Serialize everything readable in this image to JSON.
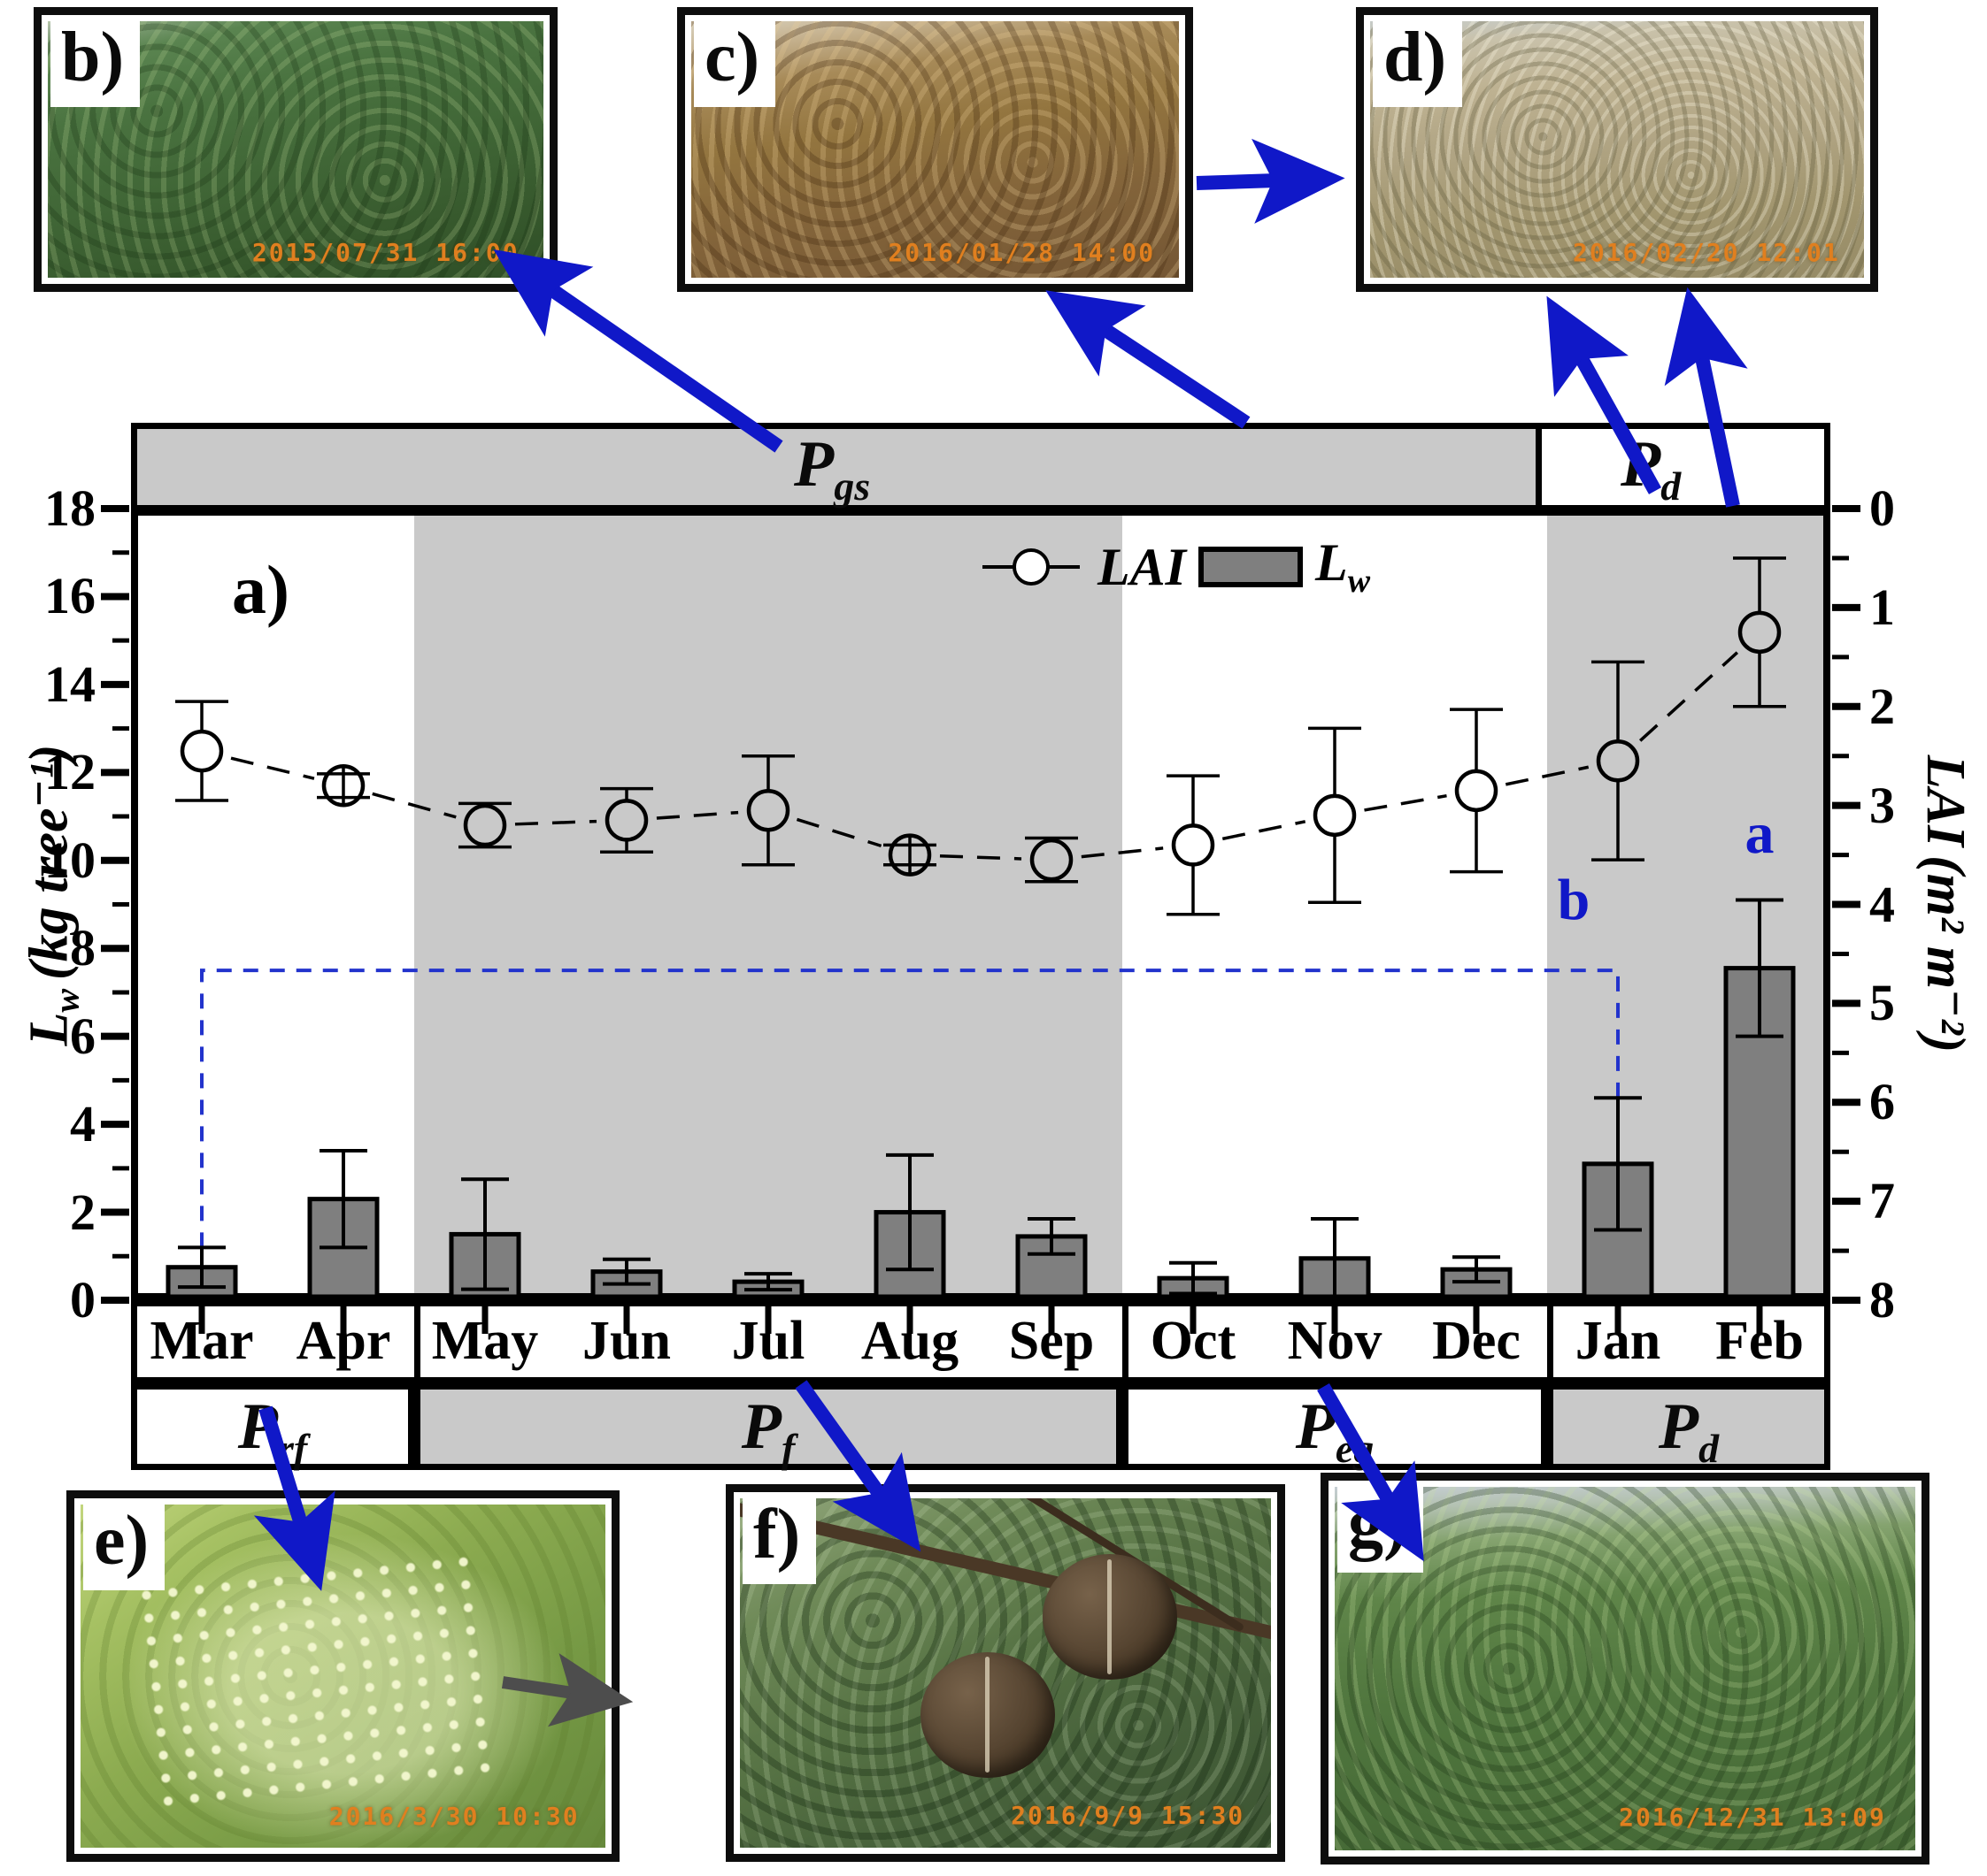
{
  "colors": {
    "accent_blue": "#1018c8",
    "dashed_blue": "#2233cc",
    "shaded_band": "#c9c9c9",
    "bar_fill": "#7f7f7f",
    "timestamp_orange": "#e07f1f",
    "border_black": "#000000"
  },
  "panels": {
    "a": "a)"
  },
  "photos": {
    "b": {
      "label": "b)",
      "timestamp": "2015/07/31 16:00",
      "scene": "dense green rubber canopy"
    },
    "c": {
      "label": "c)",
      "timestamp": "2016/01/28 14:00",
      "scene": "discoloring brown canopy"
    },
    "d": {
      "label": "d)",
      "timestamp": "2016/02/20 12:01",
      "scene": "defoliated leafless canopy"
    },
    "e": {
      "label": "e)",
      "timestamp": "2016/3/30 10:30",
      "scene": "flowering shoot close-up"
    },
    "f": {
      "label": "f)",
      "timestamp": "2016/9/9 15:30",
      "scene": "rubber fruit capsules on branch"
    },
    "g": {
      "label": "g)",
      "timestamp": "2016/12/31 13:09",
      "scene": "evergreen canopy"
    }
  },
  "top_band": {
    "items": [
      {
        "main": "P",
        "sub": "gs",
        "start_month": 0,
        "end_month": 10,
        "shaded": true
      },
      {
        "main": "P",
        "sub": "d",
        "start_month": 10,
        "end_month": 12,
        "shaded": false
      }
    ]
  },
  "phase_row": {
    "items": [
      {
        "main": "P",
        "sub": "rf",
        "start_month": 0,
        "end_month": 2,
        "shaded": false
      },
      {
        "main": "P",
        "sub": "f",
        "start_month": 2,
        "end_month": 7,
        "shaded": true
      },
      {
        "main": "P",
        "sub": "eg",
        "start_month": 7,
        "end_month": 10,
        "shaded": false
      },
      {
        "main": "P",
        "sub": "d",
        "start_month": 10,
        "end_month": 12,
        "shaded": true
      }
    ]
  },
  "legend": {
    "lai_label": "LAI",
    "lw_main": "L",
    "lw_sub": "w"
  },
  "axes": {
    "left": {
      "main": "L",
      "sub": "w",
      "units": "(kg tree⁻¹)",
      "range": [
        0,
        18
      ],
      "tick_step": 2
    },
    "right": {
      "main": "LAI",
      "units": "(m² m⁻²)",
      "range": [
        0,
        8
      ],
      "tick_step": 1,
      "inverted": true
    }
  },
  "chart_data": {
    "type": "bar+line",
    "categories": [
      "Mar",
      "Apr",
      "May",
      "Jun",
      "Jul",
      "Aug",
      "Sep",
      "Oct",
      "Nov",
      "Dec",
      "Jan",
      "Feb"
    ],
    "series": [
      {
        "name": "LAI",
        "plot": "scatter-line",
        "axis": "right",
        "marker": "open-circle",
        "values": [
          2.45,
          2.8,
          3.2,
          3.15,
          3.05,
          3.5,
          3.55,
          3.4,
          3.1,
          2.85,
          2.55,
          1.25
        ],
        "errors": [
          0.5,
          0.12,
          0.22,
          0.32,
          0.55,
          0.1,
          0.22,
          0.7,
          0.88,
          0.82,
          1.0,
          0.75
        ],
        "crossed_markers": [
          1,
          5
        ]
      },
      {
        "name": "Lw",
        "plot": "bar",
        "axis": "left",
        "values": [
          0.75,
          2.3,
          1.5,
          0.65,
          0.42,
          2.0,
          1.45,
          0.5,
          0.95,
          0.7,
          3.1,
          7.55
        ],
        "errors": [
          0.45,
          1.1,
          1.25,
          0.28,
          0.18,
          1.3,
          0.4,
          0.35,
          0.9,
          0.28,
          1.5,
          1.55
        ]
      }
    ],
    "shaded_month_ranges": [
      [
        2,
        7
      ],
      [
        10,
        12
      ]
    ],
    "significance": {
      "bracket_from_month": 0,
      "bracket_to_month": 10,
      "bracket_level_lw": 7.5,
      "letters": [
        {
          "text": "b",
          "month": 10,
          "level_lw": 9.1,
          "x_offset": -50
        },
        {
          "text": "a",
          "month": 11,
          "level_lw": 10.6,
          "x_offset": 0
        }
      ]
    },
    "xlabel": "",
    "grid": false,
    "legend_position": "top-right-inside"
  }
}
